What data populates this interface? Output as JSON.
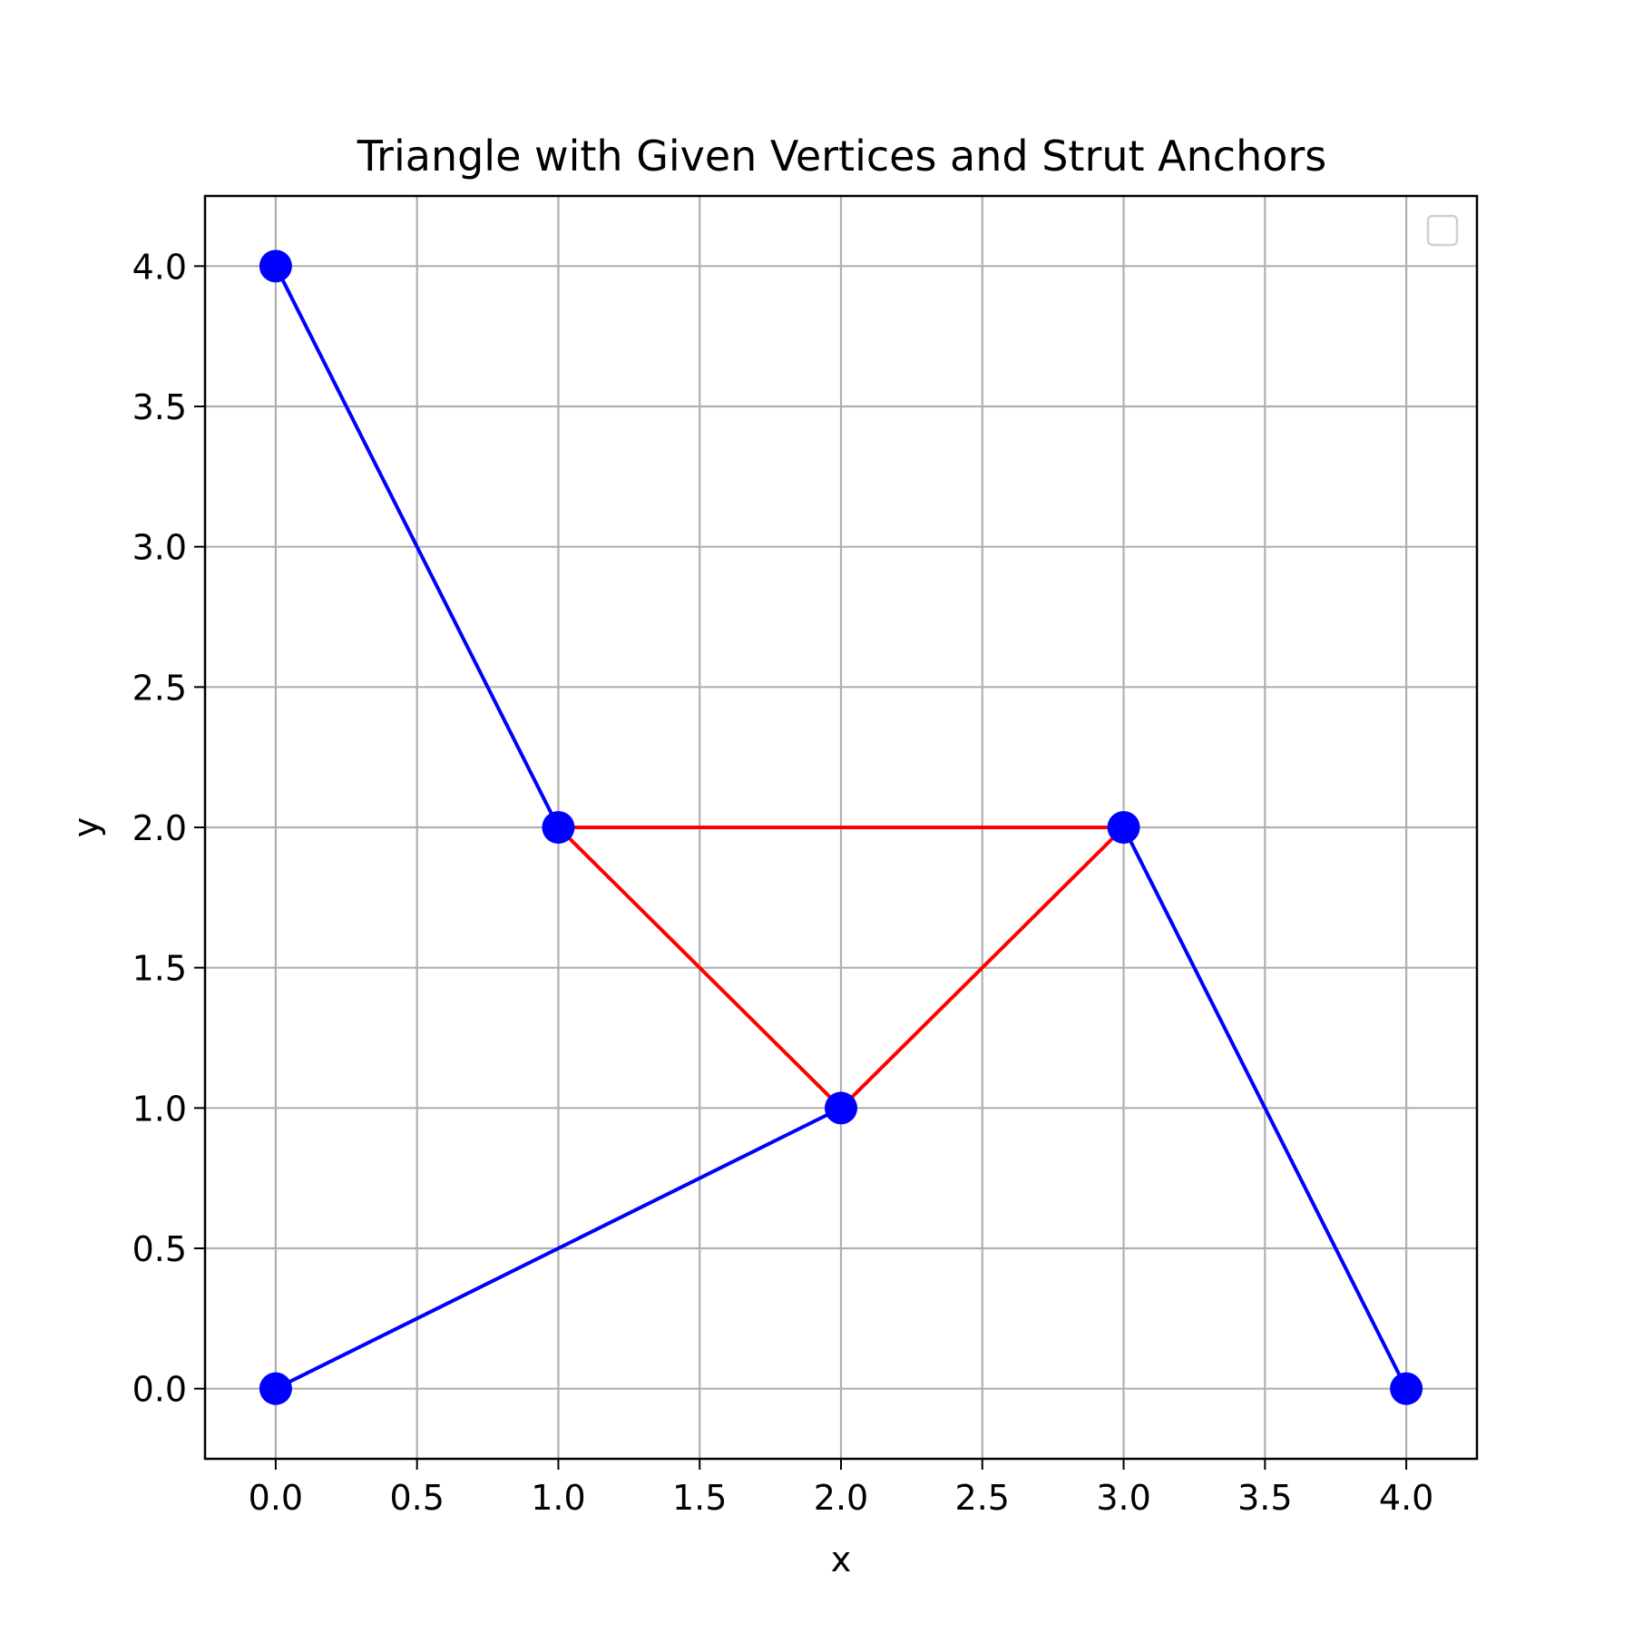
{
  "chart_data": {
    "type": "line",
    "title": "Triangle with Given Vertices and Strut Anchors",
    "xlabel": "x",
    "ylabel": "y",
    "xlim": [
      -0.25,
      4.25
    ],
    "ylim": [
      -0.25,
      4.25
    ],
    "xticks": [
      "0.0",
      "0.5",
      "1.0",
      "1.5",
      "2.0",
      "2.5",
      "3.0",
      "3.5",
      "4.0"
    ],
    "yticks": [
      "0.0",
      "0.5",
      "1.0",
      "1.5",
      "2.0",
      "2.5",
      "3.0",
      "3.5",
      "4.0"
    ],
    "grid": true,
    "legend": {
      "placement": "upper-right",
      "entries": []
    },
    "series": [
      {
        "color": "#0000ff",
        "x": [
          0,
          1
        ],
        "y": [
          4,
          2
        ]
      },
      {
        "color": "#0000ff",
        "x": [
          0,
          2
        ],
        "y": [
          0,
          1
        ]
      },
      {
        "color": "#0000ff",
        "x": [
          4,
          3
        ],
        "y": [
          0,
          2
        ]
      },
      {
        "color": "#ff0000",
        "x": [
          1,
          3,
          2,
          1
        ],
        "y": [
          2,
          2,
          1,
          2
        ]
      }
    ],
    "points": {
      "color": "#0000ff",
      "x": [
        0,
        0,
        4,
        1,
        3,
        2
      ],
      "y": [
        4,
        0,
        0,
        2,
        2,
        1
      ]
    }
  }
}
